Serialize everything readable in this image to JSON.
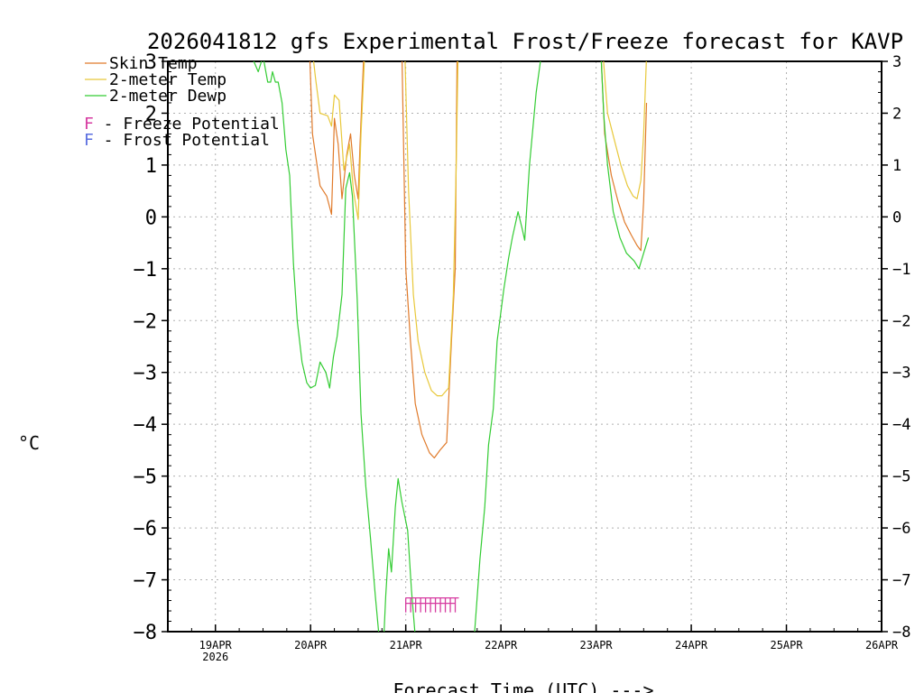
{
  "chart_data": {
    "type": "line",
    "title": "2026041812 gfs Experimental Frost/Freeze forecast for KAVP",
    "xlabel": "Forecast Time (UTC) --->",
    "ylabel": "°C",
    "ylim": [
      -8,
      3
    ],
    "xlim": [
      -0.5,
      7
    ],
    "grid": true,
    "x_ticks": [
      {
        "x": 0,
        "label": "19APR",
        "sublabel": "2026"
      },
      {
        "x": 1,
        "label": "20APR",
        "sublabel": ""
      },
      {
        "x": 2,
        "label": "21APR",
        "sublabel": ""
      },
      {
        "x": 3,
        "label": "22APR",
        "sublabel": ""
      },
      {
        "x": 4,
        "label": "23APR",
        "sublabel": ""
      },
      {
        "x": 5,
        "label": "24APR",
        "sublabel": ""
      },
      {
        "x": 6,
        "label": "25APR",
        "sublabel": ""
      },
      {
        "x": 7,
        "label": "26APR",
        "sublabel": ""
      }
    ],
    "y_ticks_left": [
      "3",
      "2",
      "1",
      "0",
      "−1",
      "−2",
      "−3",
      "−4",
      "−5",
      "−6",
      "−7",
      "−8"
    ],
    "y_ticks_right": [
      "3",
      "2",
      "1",
      "0",
      "−1",
      "−2",
      "−3",
      "−4",
      "−5",
      "−6",
      "−7",
      "−8"
    ],
    "legend": {
      "placement": "top-left",
      "items": [
        {
          "label": "Skin Temp",
          "color": "#e07a2a"
        },
        {
          "label": "2-meter Temp",
          "color": "#e8c83a"
        },
        {
          "label": "2-meter Dewp",
          "color": "#33cc33"
        }
      ],
      "markers": [
        {
          "glyph": "F",
          "text": " - Freeze Potential",
          "color": "#d63aa0"
        },
        {
          "glyph": "F",
          "text": " - Frost Potential",
          "color": "#5a6ee0"
        }
      ]
    },
    "series": [
      {
        "name": "Skin Temp",
        "color": "#e07a2a",
        "segments": [
          [
            [
              0.99,
              3.2
            ],
            [
              1.02,
              1.6
            ],
            [
              1.1,
              0.6
            ],
            [
              1.17,
              0.4
            ],
            [
              1.22,
              0.05
            ],
            [
              1.25,
              1.9
            ],
            [
              1.29,
              1.4
            ],
            [
              1.33,
              0.35
            ],
            [
              1.38,
              1.2
            ],
            [
              1.42,
              1.6
            ],
            [
              1.46,
              0.8
            ],
            [
              1.5,
              0.35
            ],
            [
              1.52,
              1.4
            ],
            [
              1.56,
              3.2
            ]
          ],
          [
            [
              1.96,
              3.2
            ],
            [
              2.0,
              -1.0
            ],
            [
              2.05,
              -2.4
            ],
            [
              2.1,
              -3.6
            ],
            [
              2.17,
              -4.2
            ],
            [
              2.25,
              -4.55
            ],
            [
              2.3,
              -4.65
            ],
            [
              2.36,
              -4.5
            ],
            [
              2.43,
              -4.35
            ],
            [
              2.48,
              -2.4
            ],
            [
              2.52,
              -1.0
            ],
            [
              2.54,
              3.2
            ]
          ],
          [
            [
              4.05,
              3.2
            ],
            [
              4.09,
              1.6
            ],
            [
              4.16,
              0.8
            ],
            [
              4.23,
              0.3
            ],
            [
              4.3,
              -0.1
            ],
            [
              4.37,
              -0.35
            ],
            [
              4.43,
              -0.55
            ],
            [
              4.47,
              -0.65
            ],
            [
              4.5,
              0.3
            ],
            [
              4.53,
              2.2
            ]
          ]
        ]
      },
      {
        "name": "2-meter Temp",
        "color": "#e8c83a",
        "segments": [
          [
            [
              1.02,
              3.2
            ],
            [
              1.05,
              2.7
            ],
            [
              1.1,
              2.0
            ],
            [
              1.18,
              1.95
            ],
            [
              1.22,
              1.75
            ],
            [
              1.25,
              2.35
            ],
            [
              1.3,
              2.25
            ],
            [
              1.35,
              0.9
            ],
            [
              1.41,
              1.4
            ],
            [
              1.45,
              0.5
            ],
            [
              1.5,
              -0.05
            ],
            [
              1.53,
              1.6
            ],
            [
              1.57,
              3.2
            ]
          ],
          [
            [
              1.99,
              3.2
            ],
            [
              2.03,
              0.5
            ],
            [
              2.08,
              -1.5
            ],
            [
              2.13,
              -2.4
            ],
            [
              2.2,
              -3.0
            ],
            [
              2.27,
              -3.35
            ],
            [
              2.33,
              -3.45
            ],
            [
              2.38,
              -3.45
            ],
            [
              2.45,
              -3.3
            ],
            [
              2.5,
              -1.5
            ],
            [
              2.53,
              1.0
            ],
            [
              2.55,
              3.2
            ]
          ],
          [
            [
              4.07,
              3.2
            ],
            [
              4.12,
              2.0
            ],
            [
              4.19,
              1.5
            ],
            [
              4.26,
              1.0
            ],
            [
              4.33,
              0.6
            ],
            [
              4.39,
              0.4
            ],
            [
              4.43,
              0.35
            ],
            [
              4.47,
              0.7
            ],
            [
              4.5,
              1.6
            ],
            [
              4.53,
              3.1
            ]
          ]
        ]
      },
      {
        "name": "2-meter Dewp",
        "color": "#33cc33",
        "segments": [
          [
            [
              0.38,
              3.1
            ],
            [
              0.45,
              2.8
            ],
            [
              0.5,
              3.1
            ],
            [
              0.55,
              2.6
            ],
            [
              0.58,
              2.6
            ],
            [
              0.6,
              2.8
            ],
            [
              0.63,
              2.6
            ],
            [
              0.66,
              2.6
            ],
            [
              0.7,
              2.2
            ],
            [
              0.74,
              1.3
            ],
            [
              0.78,
              0.8
            ],
            [
              0.82,
              -0.9
            ],
            [
              0.86,
              -2.0
            ],
            [
              0.91,
              -2.8
            ],
            [
              0.96,
              -3.2
            ],
            [
              1.0,
              -3.3
            ],
            [
              1.05,
              -3.25
            ],
            [
              1.1,
              -2.8
            ],
            [
              1.16,
              -3.0
            ],
            [
              1.2,
              -3.3
            ],
            [
              1.24,
              -2.7
            ],
            [
              1.28,
              -2.3
            ],
            [
              1.33,
              -1.5
            ],
            [
              1.37,
              0.55
            ],
            [
              1.41,
              0.85
            ],
            [
              1.44,
              0.4
            ],
            [
              1.49,
              -1.6
            ],
            [
              1.53,
              -3.8
            ],
            [
              1.58,
              -5.2
            ],
            [
              1.63,
              -6.2
            ],
            [
              1.68,
              -7.3
            ],
            [
              1.72,
              -8.1
            ]
          ],
          [
            [
              1.77,
              -8.1
            ],
            [
              1.79,
              -7.3
            ],
            [
              1.82,
              -6.4
            ],
            [
              1.85,
              -6.85
            ],
            [
              1.89,
              -5.6
            ],
            [
              1.92,
              -5.05
            ],
            [
              1.96,
              -5.5
            ],
            [
              2.02,
              -6.05
            ],
            [
              2.06,
              -7.2
            ],
            [
              2.1,
              -8.1
            ]
          ],
          [
            [
              2.72,
              -8.1
            ],
            [
              2.78,
              -6.6
            ],
            [
              2.83,
              -5.6
            ],
            [
              2.87,
              -4.4
            ],
            [
              2.92,
              -3.7
            ],
            [
              2.96,
              -2.4
            ],
            [
              3.03,
              -1.4
            ],
            [
              3.08,
              -0.8
            ],
            [
              3.12,
              -0.4
            ],
            [
              3.18,
              0.1
            ],
            [
              3.22,
              -0.2
            ],
            [
              3.25,
              -0.45
            ],
            [
              3.3,
              1.0
            ],
            [
              3.37,
              2.4
            ],
            [
              3.43,
              3.2
            ]
          ],
          [
            [
              4.05,
              3.2
            ],
            [
              4.08,
              2.0
            ],
            [
              4.12,
              1.0
            ],
            [
              4.18,
              0.1
            ],
            [
              4.25,
              -0.4
            ],
            [
              4.32,
              -0.7
            ],
            [
              4.4,
              -0.85
            ],
            [
              4.45,
              -1.0
            ],
            [
              4.5,
              -0.7
            ],
            [
              4.55,
              -0.4
            ]
          ]
        ]
      }
    ],
    "freeze_markers": {
      "color": "#d63aa0",
      "x_start": 2.0,
      "x_end": 2.52,
      "y": -7.35,
      "count": 11
    }
  }
}
